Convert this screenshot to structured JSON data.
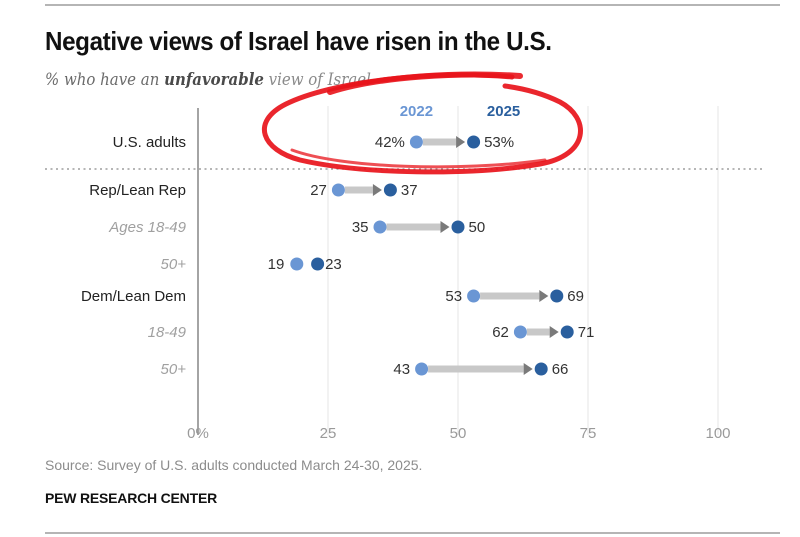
{
  "header": {
    "title": "Negative views of Israel have risen in the U.S.",
    "subtitle_pre": "% who have an ",
    "subtitle_bold": "unfavorable",
    "subtitle_post": " view of Israel"
  },
  "footer": {
    "source": "Source: Survey of U.S. adults conducted March 24-30, 2025.",
    "brand": "PEW RESEARCH CENTER"
  },
  "colors": {
    "y2022": "#6a96d4",
    "y2025": "#2a5f9e",
    "arrow": "#c8c8c8",
    "arrowhead": "#7a7a7a",
    "annotation": "#e8141b"
  },
  "chart_data": {
    "type": "dumbbell",
    "title": "Negative views of Israel have risen in the U.S.",
    "subtitle": "% who have an unfavorable view of Israel",
    "xlabel": "",
    "ylabel": "",
    "xlim": [
      0,
      100
    ],
    "x_ticks": [
      0,
      25,
      50,
      75,
      100
    ],
    "x_tick_labels": [
      "0%",
      "25",
      "50",
      "75",
      "100"
    ],
    "legend": [
      "2022",
      "2025"
    ],
    "legend_placement": "top (above U.S. adults row)",
    "series_names": [
      "2022",
      "2025"
    ],
    "rows": [
      {
        "label": "U.S. adults",
        "style": "main",
        "v2022": 42,
        "v2025": 53,
        "label2022": "42%",
        "label2025": "53%"
      },
      {
        "label": "Rep/Lean Rep",
        "style": "main",
        "v2022": 27,
        "v2025": 37,
        "label2022": "27",
        "label2025": "37"
      },
      {
        "label": "Ages 18-49",
        "style": "sub",
        "v2022": 35,
        "v2025": 50,
        "label2022": "35",
        "label2025": "50"
      },
      {
        "label": "50+",
        "style": "sub",
        "v2022": 19,
        "v2025": 23,
        "label2022": "19",
        "label2025": "23"
      },
      {
        "label": "Dem/Lean Dem",
        "style": "main",
        "v2022": 53,
        "v2025": 69,
        "label2022": "53",
        "label2025": "69"
      },
      {
        "label": "18-49",
        "style": "sub",
        "v2022": 62,
        "v2025": 71,
        "label2022": "62",
        "label2025": "71"
      },
      {
        "label": "50+",
        "style": "sub",
        "v2022": 43,
        "v2025": 66,
        "label2022": "43",
        "label2025": "66"
      }
    ],
    "annotation": "red hand-drawn ellipse circling the U.S. adults row and the 2022/2025 legend"
  }
}
